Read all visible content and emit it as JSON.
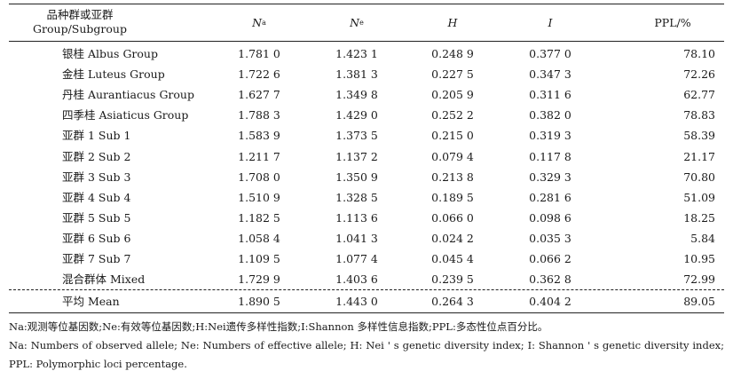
{
  "header": {
    "group_cn": "品种群或亚群",
    "group_en": "Group/Subgroup",
    "col_na_main": "N",
    "col_na_sub": "a",
    "col_ne_main": "N",
    "col_ne_sub": "e",
    "col_h": "H",
    "col_i": "I",
    "col_ppl": "PPL/%"
  },
  "rows": [
    {
      "name": "银桂 Albus Group",
      "na": "1.781 0",
      "ne": "1.423 1",
      "h": "0.248 9",
      "i": "0.377 0",
      "ppl": "78.10"
    },
    {
      "name": "金桂 Luteus Group",
      "na": "1.722 6",
      "ne": "1.381 3",
      "h": "0.227 5",
      "i": "0.347 3",
      "ppl": "72.26"
    },
    {
      "name": "丹桂 Aurantiacus Group",
      "na": "1.627 7",
      "ne": "1.349 8",
      "h": "0.205 9",
      "i": "0.311 6",
      "ppl": "62.77"
    },
    {
      "name": "四季桂 Asiaticus Group",
      "na": "1.788 3",
      "ne": "1.429 0",
      "h": "0.252 2",
      "i": "0.382 0",
      "ppl": "78.83"
    },
    {
      "name": "亚群 1 Sub 1",
      "na": "1.583 9",
      "ne": "1.373 5",
      "h": "0.215 0",
      "i": "0.319 3",
      "ppl": "58.39"
    },
    {
      "name": "亚群 2 Sub 2",
      "na": "1.211 7",
      "ne": "1.137 2",
      "h": "0.079 4",
      "i": "0.117 8",
      "ppl": "21.17"
    },
    {
      "name": "亚群 3 Sub 3",
      "na": "1.708 0",
      "ne": "1.350 9",
      "h": "0.213 8",
      "i": "0.329 3",
      "ppl": "70.80"
    },
    {
      "name": "亚群 4 Sub 4",
      "na": "1.510 9",
      "ne": "1.328 5",
      "h": "0.189 5",
      "i": "0.281 6",
      "ppl": "51.09"
    },
    {
      "name": "亚群 5 Sub 5",
      "na": "1.182 5",
      "ne": "1.113 6",
      "h": "0.066 0",
      "i": "0.098 6",
      "ppl": "18.25"
    },
    {
      "name": "亚群 6 Sub 6",
      "na": "1.058 4",
      "ne": "1.041 3",
      "h": "0.024 2",
      "i": "0.035 3",
      "ppl": "5.84"
    },
    {
      "name": "亚群 7 Sub 7",
      "na": "1.109 5",
      "ne": "1.077 4",
      "h": "0.045 4",
      "i": "0.066 2",
      "ppl": "10.95"
    },
    {
      "name": "混合群体 Mixed",
      "na": "1.729 9",
      "ne": "1.403 6",
      "h": "0.239 5",
      "i": "0.362 8",
      "ppl": "72.99"
    }
  ],
  "mean_row": {
    "name": "平均 Mean",
    "na": "1.890 5",
    "ne": "1.443 0",
    "h": "0.264 3",
    "i": "0.404 2",
    "ppl": "89.05"
  },
  "notes": {
    "cn": "Na:观测等位基因数;Ne:有效等位基因数;H:Nei遗传多样性指数;I:Shannon 多样性信息指数;PPL:多态性位点百分比。",
    "en_line1": "Na: Numbers of observed allele; Ne: Numbers of effective allele; H: Nei ' s genetic diversity index; I: Shannon ' s genetic diversity index;",
    "en_line2": "PPL: Polymorphic loci percentage."
  }
}
